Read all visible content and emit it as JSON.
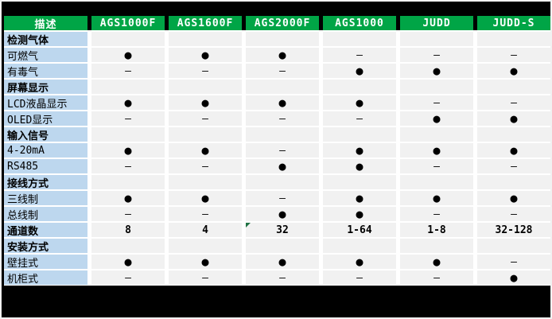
{
  "colors": {
    "page_bg": "#000000",
    "page_border": "#F1F1F1",
    "header_bg": "#00A546",
    "header_fg": "#FFFFFF",
    "label_bg": "#BDD7EE",
    "cell_bg": "#F1F1F1",
    "grid": "#FFFFFF",
    "note_marker": "#1F7244"
  },
  "table": {
    "header_columns": [
      "描述",
      "AGS1000F",
      "AGS1600F",
      "AGS2000F",
      "AGS1000",
      "JUDD",
      "JUDD-S"
    ],
    "glyphs": {
      "present": "●",
      "absent": "–"
    },
    "rows": [
      {
        "label": "检测气体",
        "bold": true,
        "values": [
          "",
          "",
          "",
          "",
          "",
          ""
        ]
      },
      {
        "label": "可燃气",
        "bold": false,
        "values": [
          "●",
          "●",
          "●",
          "–",
          "–",
          "–"
        ]
      },
      {
        "label": "有毒气",
        "bold": false,
        "values": [
          "–",
          "–",
          "–",
          "●",
          "●",
          "●"
        ]
      },
      {
        "label": "屏幕显示",
        "bold": true,
        "values": [
          "",
          "",
          "",
          "",
          "",
          ""
        ]
      },
      {
        "label": "LCD液晶显示",
        "bold": false,
        "values": [
          "●",
          "●",
          "●",
          "●",
          "–",
          "–"
        ]
      },
      {
        "label": "OLED显示",
        "bold": false,
        "values": [
          "–",
          "–",
          "–",
          "–",
          "●",
          "●"
        ]
      },
      {
        "label": "输入信号",
        "bold": true,
        "values": [
          "",
          "",
          "",
          "",
          "",
          ""
        ]
      },
      {
        "label": "4-20mA",
        "bold": false,
        "values": [
          "●",
          "●",
          "–",
          "●",
          "●",
          "●"
        ]
      },
      {
        "label": "RS485",
        "bold": false,
        "values": [
          "–",
          "–",
          "●",
          "●",
          "–",
          "–"
        ]
      },
      {
        "label": "接线方式",
        "bold": true,
        "values": [
          "",
          "",
          "",
          "",
          "",
          ""
        ]
      },
      {
        "label": "三线制",
        "bold": false,
        "values": [
          "●",
          "●",
          "–",
          "●",
          "●",
          "●"
        ]
      },
      {
        "label": "总线制",
        "bold": false,
        "values": [
          "–",
          "–",
          "●",
          "●",
          "–",
          "–"
        ]
      },
      {
        "label": "通道数",
        "bold": true,
        "values": [
          "8",
          "4",
          "32",
          "1-64",
          "1-8",
          "32-128"
        ],
        "marker": {
          "col": 2,
          "type": "green-triangle"
        }
      },
      {
        "label": "安装方式",
        "bold": true,
        "values": [
          "",
          "",
          "",
          "",
          "",
          ""
        ]
      },
      {
        "label": "壁挂式",
        "bold": false,
        "values": [
          "●",
          "●",
          "●",
          "●",
          "●",
          "–"
        ]
      },
      {
        "label": "机柜式",
        "bold": false,
        "values": [
          "–",
          "–",
          "–",
          "–",
          "–",
          "●"
        ]
      }
    ]
  }
}
